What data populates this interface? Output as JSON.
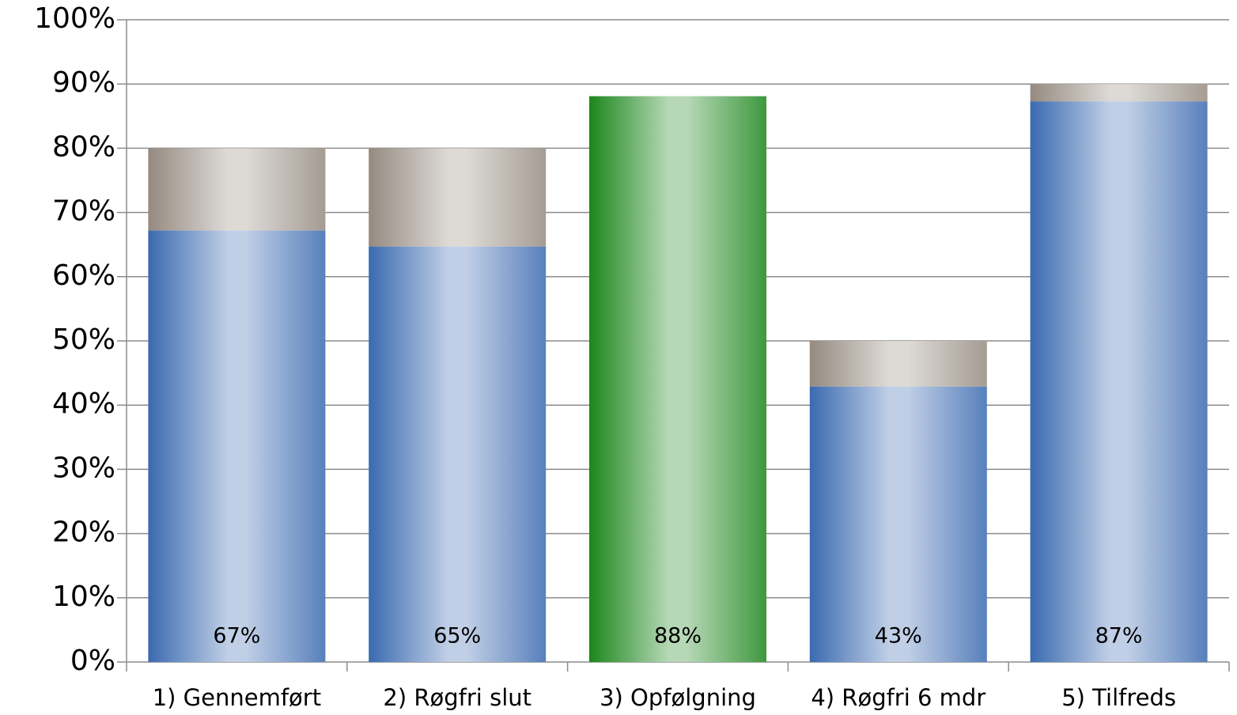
{
  "chart_data": {
    "type": "bar",
    "stacked": true,
    "grid": true,
    "categories": [
      "1) Gennemført",
      "2) Røgfri slut",
      "3) Opfølgning",
      "4) Røgfri 6 mdr",
      "5) Tilfreds"
    ],
    "series": [
      {
        "values": [
          67.2,
          64.7,
          88.1,
          42.9,
          87.3
        ],
        "value_labels": [
          "67%",
          "65%",
          "88%",
          "43%",
          "87%"
        ],
        "colors": [
          "#3a6ab0",
          "#3a6ab0",
          "#1c861c",
          "#3a6ab0",
          "#3a6ab0"
        ]
      },
      {
        "values": [
          12.8,
          15.3,
          null,
          7.1,
          2.7
        ],
        "color": "#958a80"
      }
    ],
    "ylim": [
      0,
      100
    ],
    "yticks": [
      {
        "value": 0,
        "label": "0%"
      },
      {
        "value": 10,
        "label": "10%"
      },
      {
        "value": 20,
        "label": "20%"
      },
      {
        "value": 30,
        "label": "30%"
      },
      {
        "value": 40,
        "label": "40%"
      },
      {
        "value": 50,
        "label": "50%"
      },
      {
        "value": 60,
        "label": "60%"
      },
      {
        "value": 70,
        "label": "70%"
      },
      {
        "value": 80,
        "label": "80%"
      },
      {
        "value": 90,
        "label": "90%"
      },
      {
        "value": 100,
        "label": "100%"
      }
    ]
  }
}
